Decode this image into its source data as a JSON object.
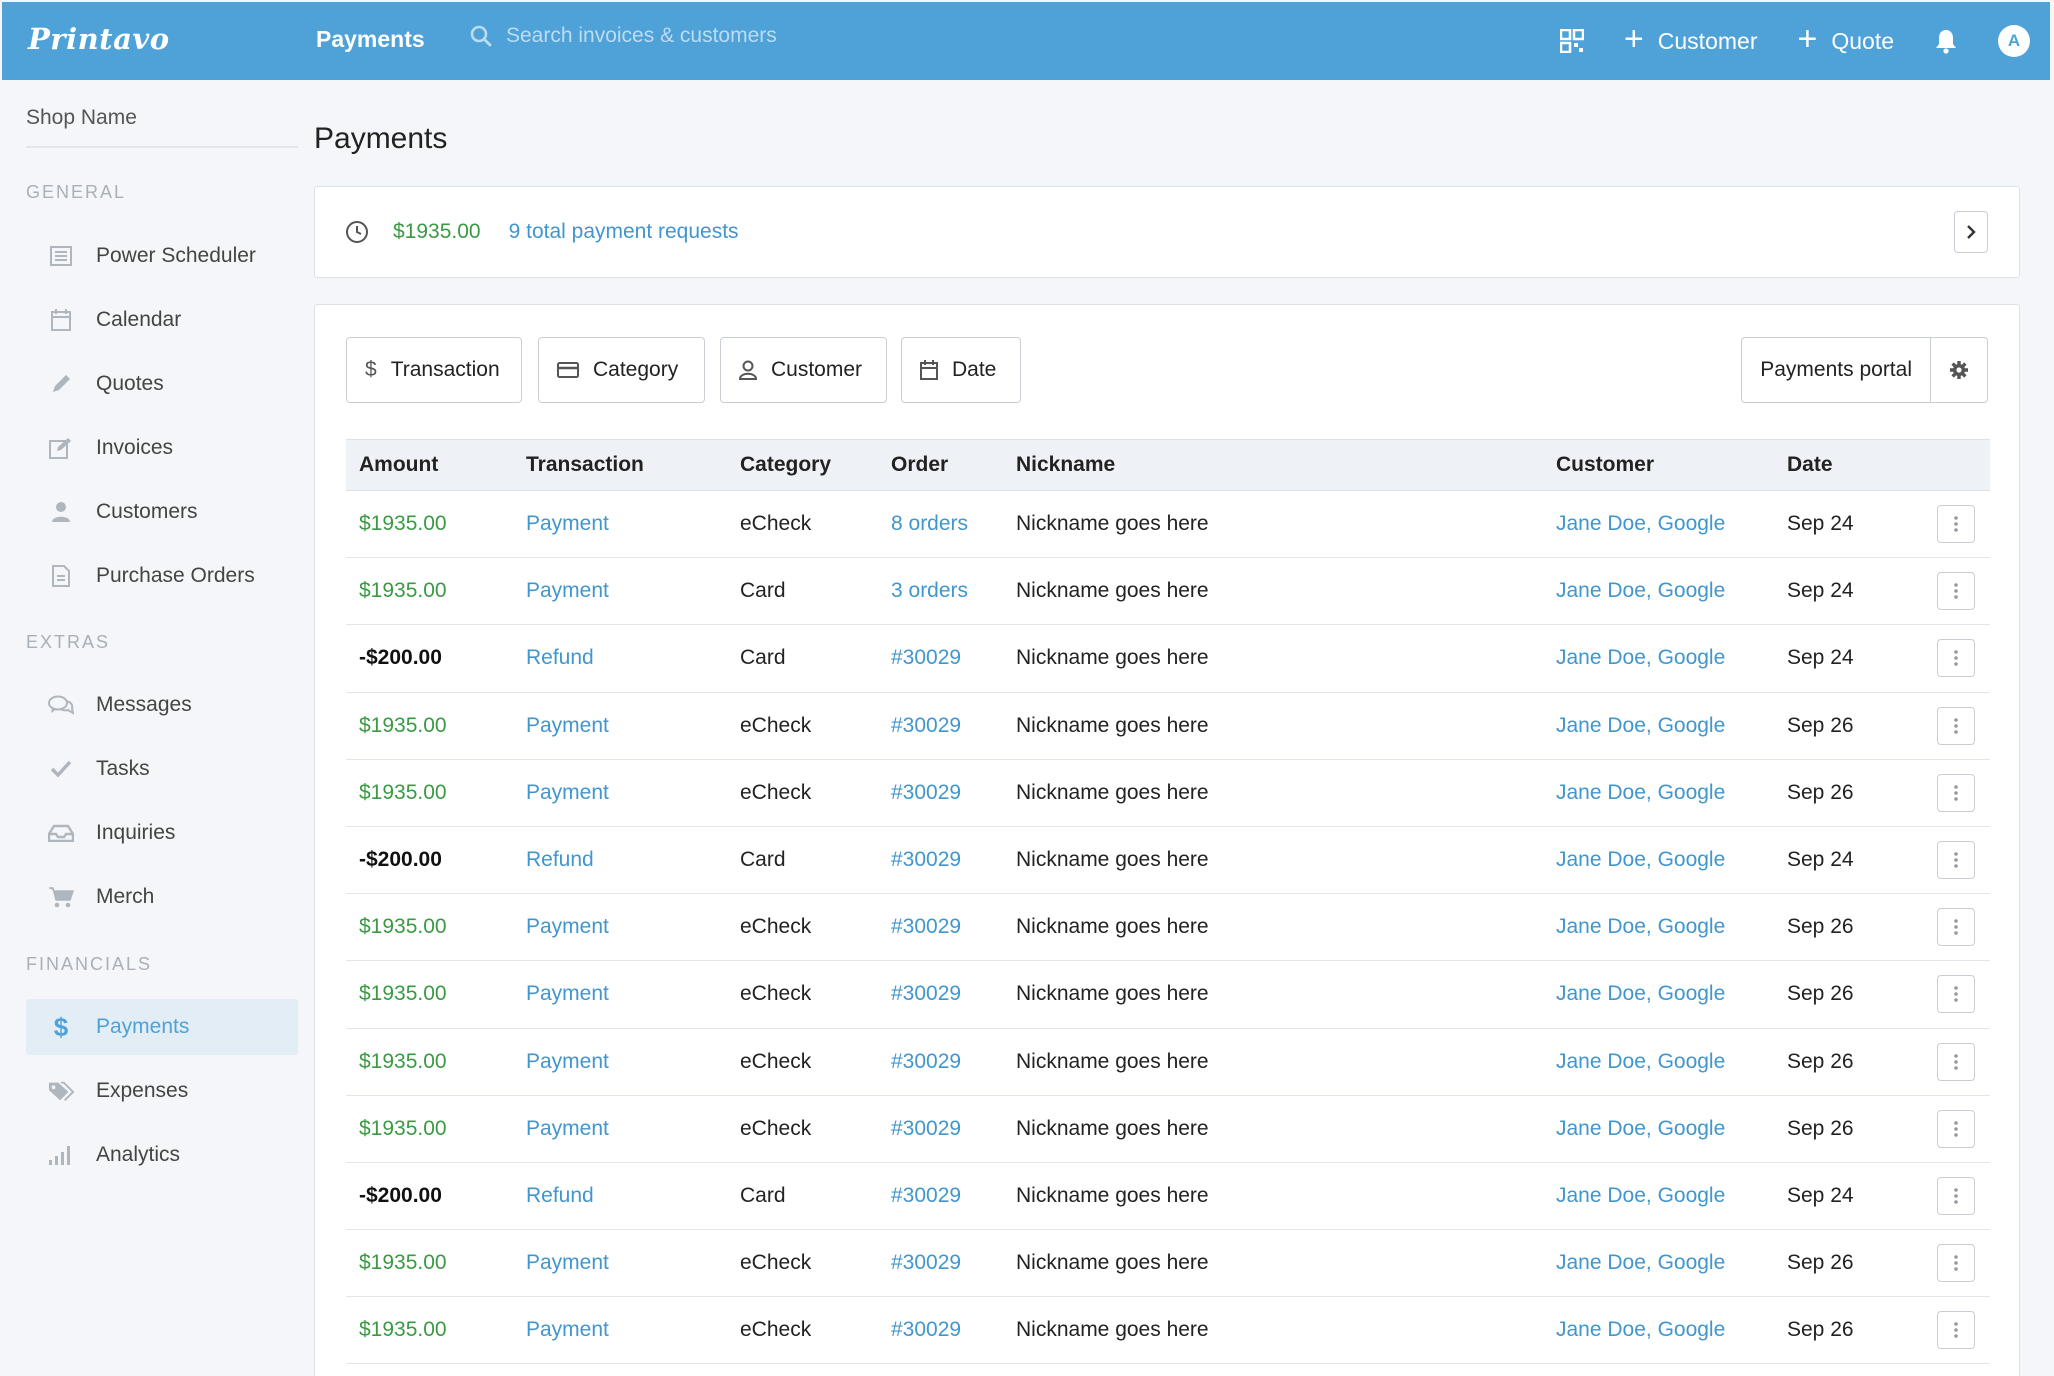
{
  "app": {
    "logo": "Printavo",
    "title": "Payments",
    "search_placeholder": "Search invoices & customers",
    "add_customer_label": "Customer",
    "add_quote_label": "Quote",
    "avatar_initial": "A"
  },
  "sidebar": {
    "shop_name": "Shop Name",
    "sections": {
      "general": "GENERAL",
      "extras": "EXTRAS",
      "financials": "FINANCIALS"
    },
    "items": [
      {
        "label": "Power Scheduler",
        "icon": "list-icon"
      },
      {
        "label": "Calendar",
        "icon": "calendar-icon"
      },
      {
        "label": "Quotes",
        "icon": "pencil-icon"
      },
      {
        "label": "Invoices",
        "icon": "edit-icon"
      },
      {
        "label": "Customers",
        "icon": "person-icon"
      },
      {
        "label": "Purchase Orders",
        "icon": "document-icon"
      },
      {
        "label": "Messages",
        "icon": "chat-icon"
      },
      {
        "label": "Tasks",
        "icon": "check-icon"
      },
      {
        "label": "Inquiries",
        "icon": "inbox-icon"
      },
      {
        "label": "Merch",
        "icon": "cart-icon"
      },
      {
        "label": "Payments",
        "icon": "dollar-icon",
        "active": true
      },
      {
        "label": "Expenses",
        "icon": "tag-icon"
      },
      {
        "label": "Analytics",
        "icon": "bar-chart-icon"
      }
    ]
  },
  "main": {
    "page_title": "Payments",
    "summary": {
      "amount": "$1935.00",
      "requests_link": "9 total payment requests"
    },
    "filters": {
      "transaction": "Transaction",
      "category": "Category",
      "customer": "Customer",
      "date": "Date",
      "payments_portal": "Payments portal"
    },
    "table": {
      "headers": {
        "amount": "Amount",
        "transaction": "Transaction",
        "category": "Category",
        "order": "Order",
        "nickname": "Nickname",
        "customer": "Customer",
        "date": "Date"
      },
      "rows": [
        {
          "amount": "$1935.00",
          "transaction": "Payment",
          "category": "eCheck",
          "order": "8 orders",
          "nickname": "Nickname goes here",
          "customer": "Jane Doe, Google",
          "date": "Sep 24"
        },
        {
          "amount": "$1935.00",
          "transaction": "Payment",
          "category": "Card",
          "order": "3 orders",
          "nickname": "Nickname goes here",
          "customer": "Jane Doe, Google",
          "date": "Sep 24"
        },
        {
          "amount": "-$200.00",
          "transaction": "Refund",
          "category": "Card",
          "order": "#30029",
          "nickname": "Nickname goes here",
          "customer": "Jane Doe, Google",
          "date": "Sep 24"
        },
        {
          "amount": "$1935.00",
          "transaction": "Payment",
          "category": "eCheck",
          "order": "#30029",
          "nickname": "Nickname goes here",
          "customer": "Jane Doe, Google",
          "date": "Sep 26"
        },
        {
          "amount": "$1935.00",
          "transaction": "Payment",
          "category": "eCheck",
          "order": "#30029",
          "nickname": "Nickname goes here",
          "customer": "Jane Doe, Google",
          "date": "Sep 26"
        },
        {
          "amount": "-$200.00",
          "transaction": "Refund",
          "category": "Card",
          "order": "#30029",
          "nickname": "Nickname goes here",
          "customer": "Jane Doe, Google",
          "date": "Sep 24"
        },
        {
          "amount": "$1935.00",
          "transaction": "Payment",
          "category": "eCheck",
          "order": "#30029",
          "nickname": "Nickname goes here",
          "customer": "Jane Doe, Google",
          "date": "Sep 26"
        },
        {
          "amount": "$1935.00",
          "transaction": "Payment",
          "category": "eCheck",
          "order": "#30029",
          "nickname": "Nickname goes here",
          "customer": "Jane Doe, Google",
          "date": "Sep 26"
        },
        {
          "amount": "$1935.00",
          "transaction": "Payment",
          "category": "eCheck",
          "order": "#30029",
          "nickname": "Nickname goes here",
          "customer": "Jane Doe, Google",
          "date": "Sep 26"
        },
        {
          "amount": "$1935.00",
          "transaction": "Payment",
          "category": "eCheck",
          "order": "#30029",
          "nickname": "Nickname goes here",
          "customer": "Jane Doe, Google",
          "date": "Sep 26"
        },
        {
          "amount": "-$200.00",
          "transaction": "Refund",
          "category": "Card",
          "order": "#30029",
          "nickname": "Nickname goes here",
          "customer": "Jane Doe, Google",
          "date": "Sep 24"
        },
        {
          "amount": "$1935.00",
          "transaction": "Payment",
          "category": "eCheck",
          "order": "#30029",
          "nickname": "Nickname goes here",
          "customer": "Jane Doe, Google",
          "date": "Sep 26"
        },
        {
          "amount": "$1935.00",
          "transaction": "Payment",
          "category": "eCheck",
          "order": "#30029",
          "nickname": "Nickname goes here",
          "customer": "Jane Doe, Google",
          "date": "Sep 26"
        }
      ]
    }
  },
  "colors": {
    "brand": "#4ea2d8",
    "positive": "#3a9a44",
    "link": "#4196cd"
  }
}
